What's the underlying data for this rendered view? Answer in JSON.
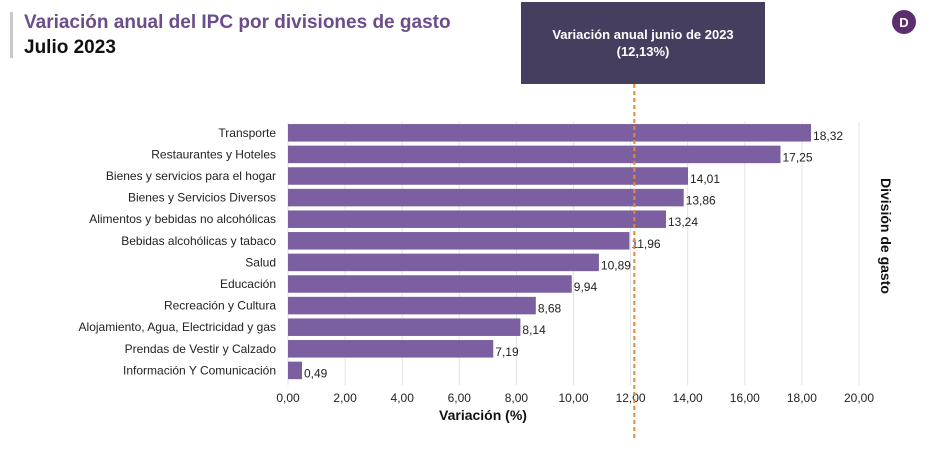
{
  "header": {
    "title": "Variación anual del IPC por divisiones de gasto",
    "subtitle": "Julio 2023"
  },
  "annotation": {
    "line1": "Variación anual junio de 2023",
    "line2": "(12,13%)"
  },
  "logo": {
    "letter": "D",
    "icon": "brand-logo-icon"
  },
  "colors": {
    "bar": "#7b5fa0",
    "reference_line": "#e08a3c",
    "annotation_box": "#463e5e",
    "title": "#6a4d8a"
  },
  "chart_data": {
    "type": "bar",
    "orientation": "horizontal",
    "categories": [
      "Transporte",
      "Restaurantes y Hoteles",
      "Bienes y servicios para el hogar",
      "Bienes y Servicios Diversos",
      "Alimentos y bebidas no alcohólicas",
      "Bebidas alcohólicas y tabaco",
      "Salud",
      "Educación",
      "Recreación y Cultura",
      "Alojamiento, Agua, Electricidad y gas",
      "Prendas de Vestir y Calzado",
      "Información Y Comunicación"
    ],
    "values": [
      18.32,
      17.25,
      14.01,
      13.86,
      13.24,
      11.96,
      10.89,
      9.94,
      8.68,
      8.14,
      7.19,
      0.49
    ],
    "value_labels": [
      "18,32",
      "17,25",
      "14,01",
      "13,86",
      "13,24",
      "11,96",
      "10,89",
      "9,94",
      "8,68",
      "8,14",
      "7,19",
      "0,49"
    ],
    "xlabel": "Variación (%)",
    "ylabel": "División de gasto",
    "xlim": [
      0,
      20
    ],
    "xticks": [
      0,
      2,
      4,
      6,
      8,
      10,
      12,
      14,
      16,
      18,
      20
    ],
    "xtick_labels": [
      "0,00",
      "2,00",
      "4,00",
      "6,00",
      "8,00",
      "10,00",
      "12,00",
      "14,00",
      "16,00",
      "18,00",
      "20,00"
    ],
    "reference_line": {
      "value": 12.13
    },
    "grid": true
  }
}
